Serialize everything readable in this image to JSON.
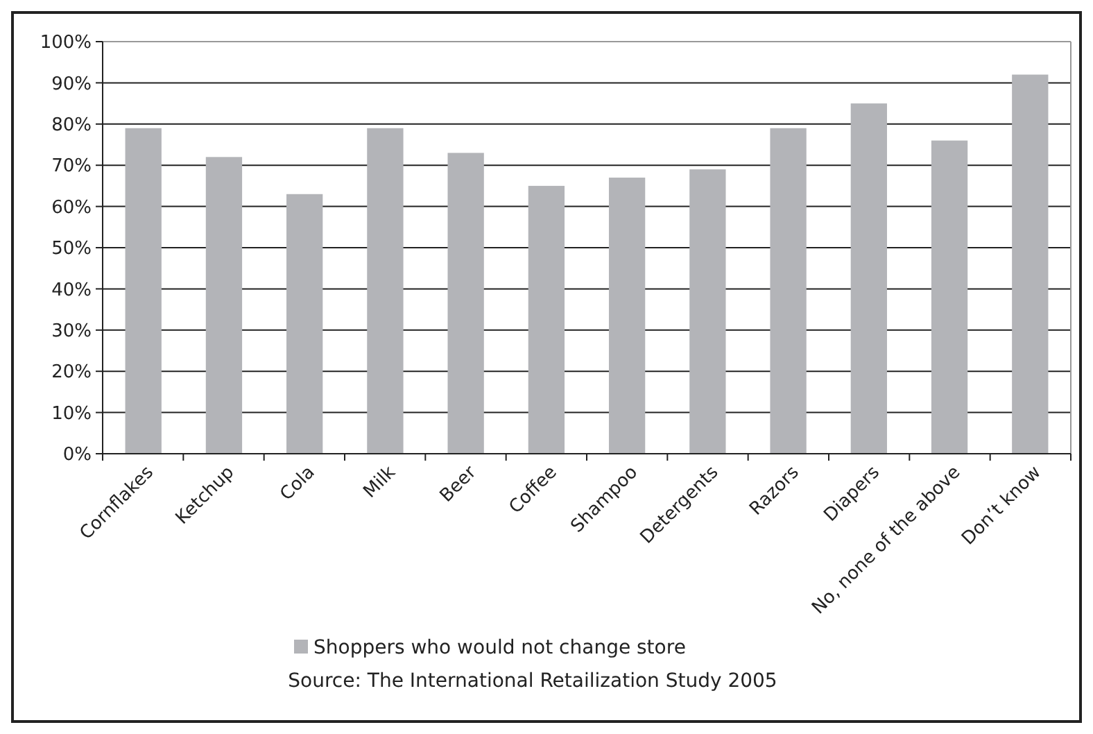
{
  "chart_data": {
    "type": "bar",
    "categories": [
      "Cornflakes",
      "Ketchup",
      "Cola",
      "Milk",
      "Beer",
      "Coffee",
      "Shampoo",
      "Detergents",
      "Razors",
      "Diapers",
      "No, none of the above",
      "Don’t know"
    ],
    "series": [
      {
        "name": "Shoppers who would not change store",
        "color": "#b3b4b8",
        "values": [
          79,
          72,
          63,
          79,
          73,
          65,
          67,
          69,
          79,
          85,
          76,
          92
        ]
      }
    ],
    "ylim": [
      0,
      100
    ],
    "yticks": [
      {
        "value": 0,
        "label": "0%"
      },
      {
        "value": 10,
        "label": "10%"
      },
      {
        "value": 20,
        "label": "20%"
      },
      {
        "value": 30,
        "label": "30%"
      },
      {
        "value": 40,
        "label": "40%"
      },
      {
        "value": 50,
        "label": "50%"
      },
      {
        "value": 60,
        "label": "60%"
      },
      {
        "value": 70,
        "label": "70%"
      },
      {
        "value": 80,
        "label": "80%"
      },
      {
        "value": 90,
        "label": "90%"
      },
      {
        "value": 100,
        "label": "100%"
      }
    ],
    "grid": "y",
    "legend": "bottom",
    "annotations": [
      "Source: The International Retailization Study 2005"
    ]
  }
}
